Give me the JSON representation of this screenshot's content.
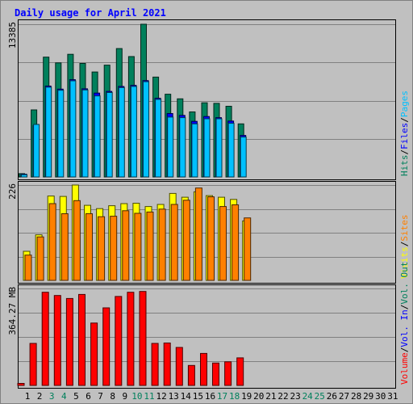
{
  "chart_data": {
    "type": "bar",
    "title": "Daily usage for April 2021",
    "days": [
      "1",
      "2",
      "3",
      "4",
      "5",
      "6",
      "7",
      "8",
      "9",
      "10",
      "11",
      "12",
      "13",
      "14",
      "15",
      "16",
      "17",
      "18",
      "19",
      "20",
      "21",
      "22",
      "23",
      "24",
      "25",
      "26",
      "27",
      "28",
      "29",
      "30",
      "31"
    ],
    "weekend_days": [
      "3",
      "4",
      "10",
      "11",
      "17",
      "18",
      "24",
      "25"
    ],
    "panels": [
      {
        "id": "hits-files-pages",
        "ymax_label": "13385",
        "ymax": 13385,
        "legend": [
          {
            "label": "Hits",
            "color": "#00805c"
          },
          {
            "label": "Files",
            "color": "#0000ff"
          },
          {
            "label": "Pages",
            "color": "#00c0ff"
          }
        ],
        "series": [
          {
            "name": "Hits",
            "color": "#00805c",
            "values": [
              290,
              5880,
              10500,
              10000,
              10750,
              9950,
              9200,
              9800,
              11250,
              10550,
              13385,
              8750,
              7250,
              6850,
              5700,
              6500,
              6450,
              6200,
              4650,
              0,
              0,
              0,
              0,
              0,
              0,
              0,
              0,
              0,
              0,
              0,
              0
            ]
          },
          {
            "name": "Files",
            "color": "#0000ff",
            "values": [
              240,
              4500,
              7970,
              7700,
              8530,
              7730,
              7350,
              7500,
              7930,
              8030,
              8450,
              6900,
              5560,
              5400,
              4870,
              5300,
              5200,
              4900,
              3640,
              0,
              0,
              0,
              0,
              0,
              0,
              0,
              0,
              0,
              0,
              0,
              0
            ]
          },
          {
            "name": "Pages",
            "color": "#00c0ff",
            "values": [
              200,
              4600,
              7870,
              7600,
              8430,
              7630,
              7100,
              7400,
              7830,
              7930,
              8350,
              6800,
              5250,
              5200,
              4650,
              5100,
              5100,
              4700,
              3500,
              0,
              0,
              0,
              0,
              0,
              0,
              0,
              0,
              0,
              0,
              0,
              0
            ]
          }
        ]
      },
      {
        "id": "visits-sites",
        "ymax_label": "226",
        "ymax": 226,
        "legend": [
          {
            "label": "Visits",
            "color": "#ffff00"
          },
          {
            "label": "Sites",
            "color": "#ff8000"
          }
        ],
        "series": [
          {
            "name": "Visits",
            "color": "#ffff00",
            "values": [
              69,
              108,
              200,
              199,
              226,
              178,
              170,
              177,
              182,
              183,
              175,
              180,
              206,
              197,
              210,
              201,
              197,
              192,
              141,
              0,
              0,
              0,
              0,
              0,
              0,
              0,
              0,
              0,
              0,
              0,
              0
            ]
          },
          {
            "name": "Sites",
            "color": "#ff8000",
            "values": [
              60,
              103,
              182,
              158,
              189,
              158,
              151,
              152,
              165,
              159,
              162,
              169,
              180,
              190,
              219,
              198,
              175,
              179,
              148,
              0,
              0,
              0,
              0,
              0,
              0,
              0,
              0,
              0,
              0,
              0,
              0
            ]
          }
        ]
      },
      {
        "id": "volume",
        "ymax_label": "364.27 MB",
        "ymax": 485,
        "legend": [
          {
            "label": "Volume",
            "color": "#ff0000"
          },
          {
            "label": "Vol. In",
            "color": "#0000ff"
          },
          {
            "label": "Vol. Out",
            "color": "#00805c"
          }
        ],
        "series": [
          {
            "name": "Volume",
            "color": "#ff0000",
            "values": [
              10,
              210,
              466,
              450,
              435,
              455,
              312,
              388,
              445,
              466,
              470,
              210,
              212,
              190,
              100,
              160,
              112,
              118,
              138,
              0,
              0,
              0,
              0,
              0,
              0,
              0,
              0,
              0,
              0,
              0,
              0
            ]
          }
        ]
      }
    ]
  }
}
